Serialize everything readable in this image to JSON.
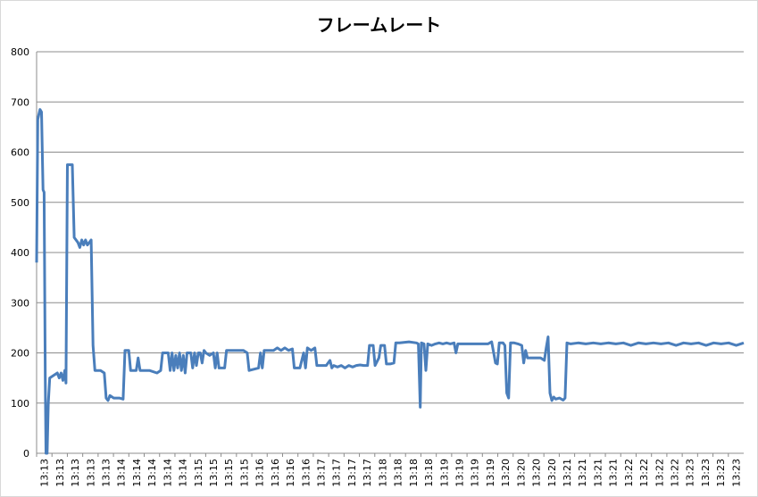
{
  "chart_data": {
    "type": "line",
    "title": "フレームレート",
    "xlabel": "",
    "ylabel": "",
    "ylim": [
      0,
      800
    ],
    "yticks": [
      0,
      100,
      200,
      300,
      400,
      500,
      600,
      700,
      800
    ],
    "grid": true,
    "legend": "none",
    "line_color": "#4a7ebb",
    "x_categories": [
      "13:13",
      "13:13",
      "13:13",
      "13:13",
      "13:13",
      "13:14",
      "13:14",
      "13:14",
      "13:14",
      "13:14",
      "13:15",
      "13:15",
      "13:15",
      "13:15",
      "13:16",
      "13:16",
      "13:16",
      "13:16",
      "13:17",
      "13:17",
      "13:17",
      "13:17",
      "13:18",
      "13:18",
      "13:18",
      "13:18",
      "13:19",
      "13:19",
      "13:19",
      "13:19",
      "13:20",
      "13:20",
      "13:20",
      "13:20",
      "13:21",
      "13:21",
      "13:21",
      "13:21",
      "13:22",
      "13:22",
      "13:22",
      "13:22",
      "13:23",
      "13:23",
      "13:23",
      "13:23"
    ],
    "series": [
      {
        "values": [
          [
            0,
            380
          ],
          [
            0.3,
            665
          ],
          [
            0.6,
            675
          ],
          [
            0.9,
            685
          ],
          [
            1.3,
            680
          ],
          [
            1.7,
            525
          ],
          [
            2.0,
            520
          ],
          [
            2.3,
            150
          ],
          [
            2.5,
            0
          ],
          [
            2.8,
            0
          ],
          [
            3.1,
            100
          ],
          [
            3.5,
            150
          ],
          [
            4.5,
            155
          ],
          [
            5.5,
            160
          ],
          [
            6.0,
            150
          ],
          [
            6.5,
            160
          ],
          [
            7.0,
            145
          ],
          [
            7.5,
            165
          ],
          [
            7.8,
            140
          ],
          [
            8.2,
            575
          ],
          [
            9.5,
            575
          ],
          [
            10.0,
            430
          ],
          [
            11.0,
            420
          ],
          [
            11.5,
            410
          ],
          [
            12.0,
            425
          ],
          [
            12.5,
            415
          ],
          [
            13.0,
            425
          ],
          [
            13.5,
            415
          ],
          [
            14.5,
            425
          ],
          [
            15.0,
            215
          ],
          [
            15.5,
            165
          ],
          [
            17.0,
            165
          ],
          [
            18.0,
            160
          ],
          [
            18.5,
            110
          ],
          [
            19.0,
            105
          ],
          [
            19.5,
            115
          ],
          [
            20.5,
            110
          ],
          [
            22.0,
            110
          ],
          [
            23.0,
            108
          ],
          [
            23.5,
            205
          ],
          [
            24.5,
            205
          ],
          [
            25.0,
            165
          ],
          [
            26.5,
            165
          ],
          [
            27.0,
            190
          ],
          [
            27.5,
            165
          ],
          [
            30.0,
            165
          ],
          [
            32.0,
            160
          ],
          [
            33.0,
            165
          ],
          [
            33.5,
            200
          ],
          [
            35.0,
            200
          ],
          [
            35.5,
            165
          ],
          [
            36.0,
            200
          ],
          [
            36.5,
            165
          ],
          [
            37.0,
            195
          ],
          [
            37.5,
            170
          ],
          [
            38.0,
            200
          ],
          [
            38.5,
            165
          ],
          [
            39.0,
            195
          ],
          [
            39.5,
            160
          ],
          [
            40.0,
            200
          ],
          [
            41.0,
            200
          ],
          [
            41.5,
            170
          ],
          [
            42.0,
            200
          ],
          [
            42.5,
            175
          ],
          [
            43.0,
            200
          ],
          [
            43.5,
            200
          ],
          [
            44.0,
            180
          ],
          [
            44.5,
            205
          ],
          [
            45.0,
            200
          ],
          [
            46.0,
            195
          ],
          [
            47.0,
            200
          ],
          [
            47.5,
            170
          ],
          [
            48.0,
            200
          ],
          [
            48.5,
            170
          ],
          [
            50.0,
            170
          ],
          [
            50.5,
            205
          ],
          [
            52.0,
            205
          ],
          [
            55.0,
            205
          ],
          [
            56.0,
            200
          ],
          [
            56.5,
            165
          ],
          [
            59.0,
            170
          ],
          [
            59.5,
            200
          ],
          [
            60.0,
            170
          ],
          [
            60.5,
            205
          ],
          [
            63.0,
            205
          ],
          [
            64.0,
            210
          ],
          [
            65.0,
            205
          ],
          [
            66.0,
            210
          ],
          [
            67.0,
            205
          ],
          [
            68.0,
            208
          ],
          [
            68.5,
            170
          ],
          [
            70.0,
            170
          ],
          [
            71.0,
            200
          ],
          [
            71.5,
            170
          ],
          [
            72.0,
            210
          ],
          [
            73.0,
            205
          ],
          [
            74.0,
            210
          ],
          [
            74.5,
            175
          ],
          [
            77.0,
            175
          ],
          [
            78.0,
            185
          ],
          [
            78.5,
            170
          ],
          [
            79.0,
            175
          ],
          [
            80.0,
            172
          ],
          [
            81.0,
            175
          ],
          [
            82.0,
            170
          ],
          [
            83.0,
            175
          ],
          [
            84.0,
            172
          ],
          [
            85.0,
            175
          ],
          [
            86.0,
            176
          ],
          [
            87.0,
            175
          ],
          [
            88.0,
            175
          ],
          [
            88.5,
            215
          ],
          [
            89.5,
            215
          ],
          [
            90.0,
            175
          ],
          [
            91.0,
            190
          ],
          [
            91.5,
            215
          ],
          [
            92.5,
            215
          ],
          [
            93.0,
            178
          ],
          [
            94.0,
            178
          ],
          [
            95.0,
            180
          ],
          [
            95.5,
            220
          ],
          [
            96.5,
            220
          ],
          [
            99.0,
            222
          ],
          [
            101.0,
            220
          ],
          [
            101.5,
            218
          ],
          [
            102.0,
            92
          ],
          [
            102.3,
            220
          ],
          [
            103.0,
            218
          ],
          [
            103.5,
            165
          ],
          [
            104.0,
            218
          ],
          [
            105.0,
            215
          ],
          [
            106.0,
            218
          ],
          [
            107.0,
            220
          ],
          [
            108.0,
            218
          ],
          [
            109.0,
            220
          ],
          [
            110.0,
            218
          ],
          [
            111.0,
            220
          ],
          [
            111.5,
            200
          ],
          [
            112.0,
            218
          ],
          [
            115.0,
            218
          ],
          [
            117.0,
            218
          ],
          [
            120.0,
            218
          ],
          [
            121.0,
            222
          ],
          [
            122.0,
            180
          ],
          [
            122.5,
            178
          ],
          [
            123.0,
            220
          ],
          [
            123.5,
            220
          ],
          [
            124.0,
            220
          ],
          [
            124.5,
            215
          ],
          [
            125.0,
            120
          ],
          [
            125.5,
            110
          ],
          [
            126.0,
            220
          ],
          [
            127.0,
            220
          ],
          [
            128.0,
            218
          ],
          [
            129.0,
            215
          ],
          [
            129.5,
            180
          ],
          [
            130.0,
            205
          ],
          [
            130.5,
            190
          ],
          [
            132.0,
            190
          ],
          [
            134.0,
            190
          ],
          [
            135.0,
            185
          ],
          [
            135.5,
            210
          ],
          [
            136.0,
            232
          ],
          [
            136.5,
            120
          ],
          [
            137.0,
            105
          ],
          [
            137.5,
            112
          ],
          [
            138.0,
            108
          ],
          [
            139.0,
            110
          ],
          [
            140.0,
            106
          ],
          [
            140.5,
            110
          ],
          [
            141.0,
            220
          ],
          [
            142.0,
            218
          ],
          [
            144.0,
            220
          ],
          [
            146.0,
            218
          ],
          [
            148.0,
            220
          ],
          [
            150.0,
            218
          ],
          [
            152.0,
            220
          ],
          [
            154.0,
            218
          ],
          [
            156.0,
            220
          ],
          [
            158.0,
            215
          ],
          [
            160.0,
            220
          ],
          [
            162.0,
            218
          ],
          [
            164.0,
            220
          ],
          [
            166.0,
            218
          ],
          [
            168.0,
            220
          ],
          [
            170.0,
            215
          ],
          [
            172.0,
            220
          ],
          [
            174.0,
            218
          ],
          [
            176.0,
            220
          ],
          [
            178.0,
            215
          ],
          [
            180.0,
            220
          ],
          [
            182.0,
            218
          ],
          [
            184.0,
            220
          ],
          [
            186.0,
            215
          ],
          [
            188.0,
            220
          ]
        ]
      }
    ]
  }
}
